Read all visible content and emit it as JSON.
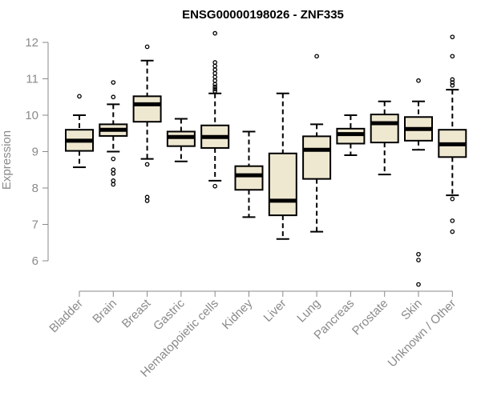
{
  "chart_data": {
    "type": "boxplot",
    "title": "ENSG00000198026 - ZNF335",
    "xlabel": "",
    "ylabel": "Expression",
    "ylim": [
      5.0,
      12.3
    ],
    "yticks": [
      6,
      7,
      8,
      9,
      10,
      11,
      12
    ],
    "colors": {
      "box_fill": "#efe8d1",
      "stroke": "#000000",
      "axis": "#8a8a8a"
    },
    "categories": [
      "Bladder",
      "Brain",
      "Breast",
      "Gastric",
      "Hematopoietic cells",
      "Kidney",
      "Liver",
      "Lung",
      "Pancreas",
      "Prostate",
      "Skin",
      "Unknown / Other"
    ],
    "boxes": [
      {
        "name": "Bladder",
        "whisker_low": 8.57,
        "q1": 9.02,
        "median": 9.3,
        "q3": 9.6,
        "whisker_high": 10.0,
        "outliers": [
          10.52
        ]
      },
      {
        "name": "Brain",
        "whisker_low": 9.0,
        "q1": 9.43,
        "median": 9.6,
        "q3": 9.75,
        "whisker_high": 10.3,
        "outliers": [
          10.9,
          10.5,
          8.8,
          8.5,
          8.4,
          8.2,
          8.1
        ]
      },
      {
        "name": "Breast",
        "whisker_low": 8.8,
        "q1": 9.82,
        "median": 10.3,
        "q3": 10.52,
        "whisker_high": 11.5,
        "outliers": [
          11.88,
          8.65,
          7.75,
          7.65
        ]
      },
      {
        "name": "Gastric",
        "whisker_low": 8.73,
        "q1": 9.15,
        "median": 9.4,
        "q3": 9.55,
        "whisker_high": 9.9,
        "outliers": []
      },
      {
        "name": "Hematopoietic cells",
        "whisker_low": 8.2,
        "q1": 9.1,
        "median": 9.4,
        "q3": 9.72,
        "whisker_high": 10.6,
        "outliers": [
          12.25,
          11.45,
          11.35,
          11.25,
          11.15,
          11.05,
          10.95,
          10.85,
          10.78,
          10.72,
          10.66,
          8.05
        ]
      },
      {
        "name": "Kidney",
        "whisker_low": 7.2,
        "q1": 7.95,
        "median": 8.35,
        "q3": 8.6,
        "whisker_high": 9.55,
        "outliers": []
      },
      {
        "name": "Liver",
        "whisker_low": 6.6,
        "q1": 7.25,
        "median": 7.65,
        "q3": 8.95,
        "whisker_high": 10.6,
        "outliers": []
      },
      {
        "name": "Lung",
        "whisker_low": 6.8,
        "q1": 8.25,
        "median": 9.05,
        "q3": 9.42,
        "whisker_high": 9.75,
        "outliers": [
          11.62
        ]
      },
      {
        "name": "Pancreas",
        "whisker_low": 8.9,
        "q1": 9.22,
        "median": 9.48,
        "q3": 9.63,
        "whisker_high": 10.0,
        "outliers": []
      },
      {
        "name": "Prostate",
        "whisker_low": 8.37,
        "q1": 9.25,
        "median": 9.78,
        "q3": 10.02,
        "whisker_high": 10.38,
        "outliers": []
      },
      {
        "name": "Skin",
        "whisker_low": 9.05,
        "q1": 9.3,
        "median": 9.62,
        "q3": 9.95,
        "whisker_high": 10.38,
        "outliers": [
          10.95,
          6.18,
          6.02,
          5.35
        ]
      },
      {
        "name": "Unknown / Other",
        "whisker_low": 7.8,
        "q1": 8.85,
        "median": 9.2,
        "q3": 9.6,
        "whisker_high": 10.7,
        "outliers": [
          12.15,
          11.62,
          10.98,
          10.9,
          10.82,
          7.7,
          7.1,
          6.8
        ]
      }
    ]
  }
}
